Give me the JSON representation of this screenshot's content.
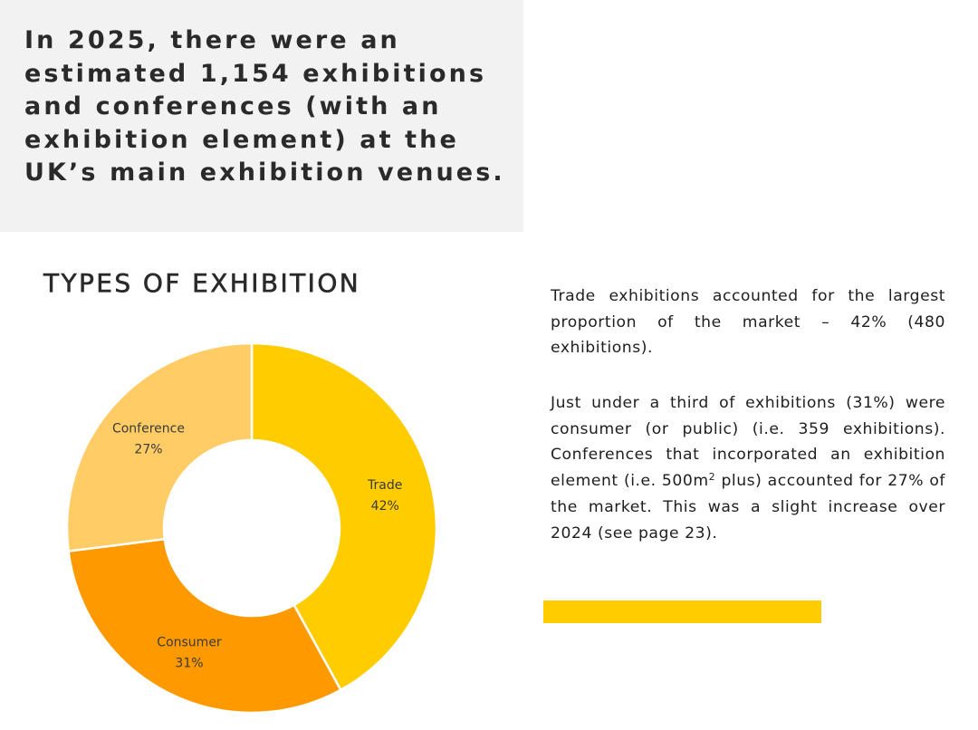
{
  "headline": "In 2025, there were an estimated 1,154 exhibitions and conferences (with an exhibition element) at the UK’s main exhibition venues.",
  "section_title": "TYPES OF EXHIBITION",
  "paragraph1": "Trade exhibitions accounted for the largest proportion of the market – 42% (480 exhibitions).",
  "paragraph2": {
    "before_sup": "Just under a third of exhibitions (31%) were consumer (or public) (i.e. 359 exhibitions). Conferences that incorporated an exhibition element (i.e. 500m",
    "sup": "2",
    "after_sup": " plus) accounted for 27% of the market. This was a slight increase over 2024 (see page 23)."
  },
  "colors": {
    "trade": "#FFCC00",
    "consumer": "#FF9900",
    "conference": "#FFCC66",
    "accent_bar": "#FFCC00",
    "headline_background": "#F2F2F2"
  },
  "chart_data": {
    "type": "pie",
    "variant": "donut",
    "title": "TYPES OF EXHIBITION",
    "slices": [
      {
        "label": "Trade",
        "value": 42,
        "display": "42%",
        "color": "#FFCC00"
      },
      {
        "label": "Consumer",
        "value": 31,
        "display": "31%",
        "color": "#FF9900"
      },
      {
        "label": "Conference",
        "value": 27,
        "display": "27%",
        "color": "#FFCC66"
      }
    ],
    "start": "top",
    "direction": "clockwise",
    "legend": "none"
  }
}
